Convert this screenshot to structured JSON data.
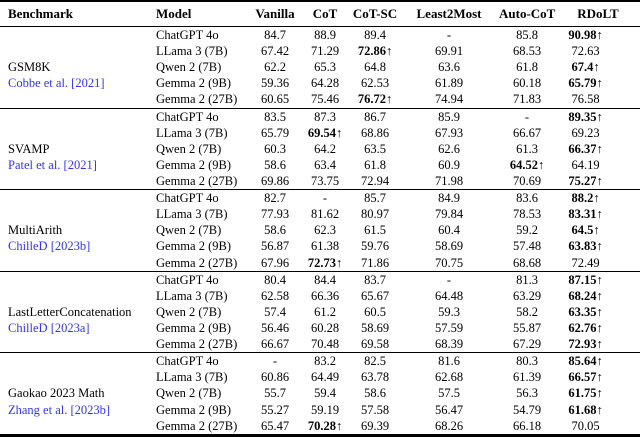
{
  "table": {
    "headers": [
      "Benchmark",
      "Model",
      "Vanilla",
      "CoT",
      "CoT-SC",
      "Least2Most",
      "Auto-CoT",
      "RDoLT"
    ],
    "citation_color": "#3333ee",
    "sections": [
      {
        "benchmark": "GSM8K",
        "citation": "Cobbe et al. [2021]",
        "rows": [
          {
            "model": "ChatGPT 4o",
            "values": [
              {
                "v": "84.7"
              },
              {
                "v": "88.9"
              },
              {
                "v": "89.4"
              },
              {
                "v": "-"
              },
              {
                "v": "85.8"
              },
              {
                "v": "90.98↑",
                "b": true
              }
            ]
          },
          {
            "model": "LLama 3 (7B)",
            "values": [
              {
                "v": "67.42"
              },
              {
                "v": "71.29"
              },
              {
                "v": "72.86↑",
                "b": true
              },
              {
                "v": "69.91"
              },
              {
                "v": "68.53"
              },
              {
                "v": "72.63"
              }
            ]
          },
          {
            "model": "Qwen 2 (7B)",
            "values": [
              {
                "v": "62.2"
              },
              {
                "v": "65.3"
              },
              {
                "v": "64.8"
              },
              {
                "v": "63.6"
              },
              {
                "v": "61.8"
              },
              {
                "v": "67.4↑",
                "b": true
              }
            ]
          },
          {
            "model": "Gemma 2 (9B)",
            "values": [
              {
                "v": "59.36"
              },
              {
                "v": "64.28"
              },
              {
                "v": "62.53"
              },
              {
                "v": "61.89"
              },
              {
                "v": "60.18"
              },
              {
                "v": "65.79↑",
                "b": true
              }
            ]
          },
          {
            "model": "Gemma 2 (27B)",
            "values": [
              {
                "v": "60.65"
              },
              {
                "v": "75.46"
              },
              {
                "v": "76.72↑",
                "b": true
              },
              {
                "v": "74.94"
              },
              {
                "v": "71.83"
              },
              {
                "v": "76.58"
              }
            ]
          }
        ]
      },
      {
        "benchmark": "SVAMP",
        "citation": "Patel et al. [2021]",
        "rows": [
          {
            "model": "ChatGPT 4o",
            "values": [
              {
                "v": "83.5"
              },
              {
                "v": "87.3"
              },
              {
                "v": "86.7"
              },
              {
                "v": "85.9"
              },
              {
                "v": "-"
              },
              {
                "v": "89.35↑",
                "b": true
              }
            ]
          },
          {
            "model": "LLama 3 (7B)",
            "values": [
              {
                "v": "65.79"
              },
              {
                "v": "69.54↑",
                "b": true
              },
              {
                "v": "68.86"
              },
              {
                "v": "67.93"
              },
              {
                "v": "66.67"
              },
              {
                "v": "69.23"
              }
            ]
          },
          {
            "model": "Qwen 2 (7B)",
            "values": [
              {
                "v": "60.3"
              },
              {
                "v": "64.2"
              },
              {
                "v": "63.5"
              },
              {
                "v": "62.6"
              },
              {
                "v": "61.3"
              },
              {
                "v": "66.37↑",
                "b": true
              }
            ]
          },
          {
            "model": "Gemma 2 (9B)",
            "values": [
              {
                "v": "58.6"
              },
              {
                "v": "63.4"
              },
              {
                "v": "61.8"
              },
              {
                "v": "60.9"
              },
              {
                "v": "64.52↑",
                "b": true
              },
              {
                "v": "64.19"
              }
            ]
          },
          {
            "model": "Gemma 2 (27B)",
            "values": [
              {
                "v": "69.86"
              },
              {
                "v": "73.75"
              },
              {
                "v": "72.94"
              },
              {
                "v": "71.98"
              },
              {
                "v": "70.69"
              },
              {
                "v": "75.27↑",
                "b": true
              }
            ]
          }
        ]
      },
      {
        "benchmark": "MultiArith",
        "citation": "ChilleD [2023b]",
        "rows": [
          {
            "model": "ChatGPT 4o",
            "values": [
              {
                "v": "82.7"
              },
              {
                "v": "-"
              },
              {
                "v": "85.7"
              },
              {
                "v": "84.9"
              },
              {
                "v": "83.6"
              },
              {
                "v": "88.2↑",
                "b": true
              }
            ]
          },
          {
            "model": "LLama 3 (7B)",
            "values": [
              {
                "v": "77.93"
              },
              {
                "v": "81.62"
              },
              {
                "v": "80.97"
              },
              {
                "v": "79.84"
              },
              {
                "v": "78.53"
              },
              {
                "v": "83.31↑",
                "b": true
              }
            ]
          },
          {
            "model": "Qwen 2 (7B)",
            "values": [
              {
                "v": "58.6"
              },
              {
                "v": "62.3"
              },
              {
                "v": "61.5"
              },
              {
                "v": "60.4"
              },
              {
                "v": "59.2"
              },
              {
                "v": "64.5↑",
                "b": true
              }
            ]
          },
          {
            "model": "Gemma 2 (9B)",
            "values": [
              {
                "v": "56.87"
              },
              {
                "v": "61.38"
              },
              {
                "v": "59.76"
              },
              {
                "v": "58.69"
              },
              {
                "v": "57.48"
              },
              {
                "v": "63.83↑",
                "b": true
              }
            ]
          },
          {
            "model": "Gemma 2 (27B)",
            "values": [
              {
                "v": "67.96"
              },
              {
                "v": "72.73↑",
                "b": true
              },
              {
                "v": "71.86"
              },
              {
                "v": "70.75"
              },
              {
                "v": "68.68"
              },
              {
                "v": "72.49"
              }
            ]
          }
        ]
      },
      {
        "benchmark": "LastLetterConcatenation",
        "citation": "ChilleD [2023a]",
        "rows": [
          {
            "model": "ChatGPT 4o",
            "values": [
              {
                "v": "80.4"
              },
              {
                "v": "84.4"
              },
              {
                "v": "83.7"
              },
              {
                "v": "-"
              },
              {
                "v": "81.3"
              },
              {
                "v": "87.15↑",
                "b": true
              }
            ]
          },
          {
            "model": "LLama 3 (7B)",
            "values": [
              {
                "v": "62.58"
              },
              {
                "v": "66.36"
              },
              {
                "v": "65.67"
              },
              {
                "v": "64.48"
              },
              {
                "v": "63.29"
              },
              {
                "v": "68.24↑",
                "b": true
              }
            ]
          },
          {
            "model": "Qwen 2 (7B)",
            "values": [
              {
                "v": "57.4"
              },
              {
                "v": "61.2"
              },
              {
                "v": "60.5"
              },
              {
                "v": "59.3"
              },
              {
                "v": "58.2"
              },
              {
                "v": "63.35↑",
                "b": true
              }
            ]
          },
          {
            "model": "Gemma 2 (9B)",
            "values": [
              {
                "v": "56.46"
              },
              {
                "v": "60.28"
              },
              {
                "v": "58.69"
              },
              {
                "v": "57.59"
              },
              {
                "v": "55.87"
              },
              {
                "v": "62.76↑",
                "b": true
              }
            ]
          },
          {
            "model": "Gemma 2 (27B)",
            "values": [
              {
                "v": "66.67"
              },
              {
                "v": "70.48"
              },
              {
                "v": "69.58"
              },
              {
                "v": "68.39"
              },
              {
                "v": "67.29"
              },
              {
                "v": "72.93↑",
                "b": true
              }
            ]
          }
        ]
      },
      {
        "benchmark": "Gaokao 2023 Math",
        "citation": "Zhang et al. [2023b]",
        "rows": [
          {
            "model": "ChatGPT 4o",
            "values": [
              {
                "v": "-"
              },
              {
                "v": "83.2"
              },
              {
                "v": "82.5"
              },
              {
                "v": "81.6"
              },
              {
                "v": "80.3"
              },
              {
                "v": "85.64↑",
                "b": true
              }
            ]
          },
          {
            "model": "LLama 3 (7B)",
            "values": [
              {
                "v": "60.86"
              },
              {
                "v": "64.49"
              },
              {
                "v": "63.78"
              },
              {
                "v": "62.68"
              },
              {
                "v": "61.39"
              },
              {
                "v": "66.57↑",
                "b": true
              }
            ]
          },
          {
            "model": "Qwen 2 (7B)",
            "values": [
              {
                "v": "55.7"
              },
              {
                "v": "59.4"
              },
              {
                "v": "58.6"
              },
              {
                "v": "57.5"
              },
              {
                "v": "56.3"
              },
              {
                "v": "61.75↑",
                "b": true
              }
            ]
          },
          {
            "model": "Gemma 2 (9B)",
            "values": [
              {
                "v": "55.27"
              },
              {
                "v": "59.19"
              },
              {
                "v": "57.58"
              },
              {
                "v": "56.47"
              },
              {
                "v": "54.79"
              },
              {
                "v": "61.68↑",
                "b": true
              }
            ]
          },
          {
            "model": "Gemma 2 (27B)",
            "values": [
              {
                "v": "65.47"
              },
              {
                "v": "70.28↑",
                "b": true
              },
              {
                "v": "69.39"
              },
              {
                "v": "68.26"
              },
              {
                "v": "66.18"
              },
              {
                "v": "70.05"
              }
            ]
          }
        ]
      }
    ]
  }
}
